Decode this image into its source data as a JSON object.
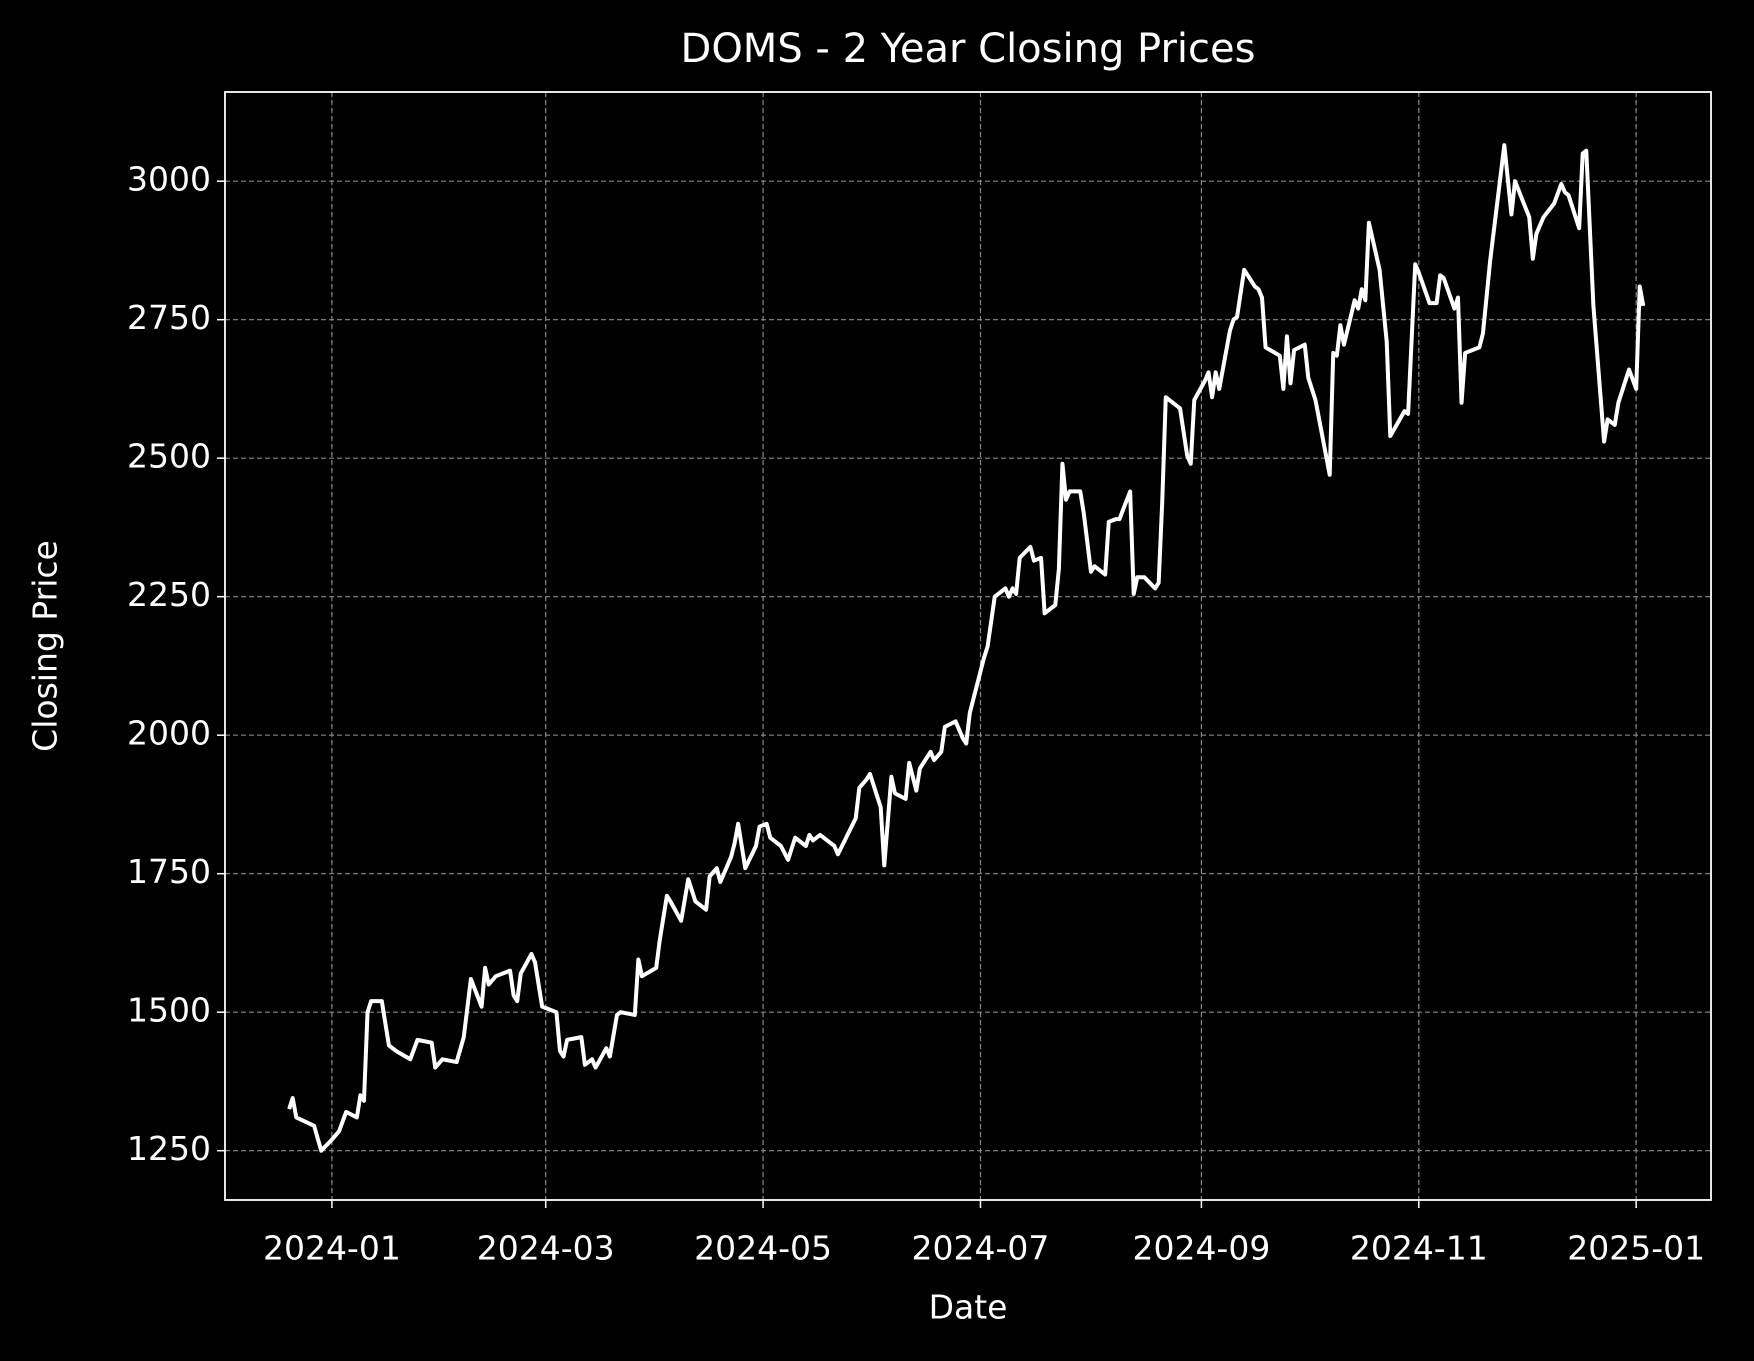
{
  "chart_data": {
    "type": "line",
    "title": "DOMS - 2 Year Closing Prices",
    "xlabel": "Date",
    "ylabel": "Closing Price",
    "x": [
      "2023-12-20",
      "2023-12-21",
      "2023-12-22",
      "2023-12-27",
      "2023-12-29",
      "2024-01-01",
      "2024-01-03",
      "2024-01-05",
      "2024-01-08",
      "2024-01-09",
      "2024-01-10",
      "2024-01-11",
      "2024-01-12",
      "2024-01-15",
      "2024-01-17",
      "2024-01-19",
      "2024-01-23",
      "2024-01-25",
      "2024-01-29",
      "2024-01-30",
      "2024-02-01",
      "2024-02-05",
      "2024-02-07",
      "2024-02-09",
      "2024-02-12",
      "2024-02-13",
      "2024-02-14",
      "2024-02-16",
      "2024-02-20",
      "2024-02-21",
      "2024-02-22",
      "2024-02-23",
      "2024-02-26",
      "2024-02-27",
      "2024-02-29",
      "2024-03-04",
      "2024-03-05",
      "2024-03-06",
      "2024-03-07",
      "2024-03-11",
      "2024-03-12",
      "2024-03-14",
      "2024-03-15",
      "2024-03-18",
      "2024-03-19",
      "2024-03-21",
      "2024-03-22",
      "2024-03-26",
      "2024-03-27",
      "2024-03-28",
      "2024-04-01",
      "2024-04-02",
      "2024-04-04",
      "2024-04-05",
      "2024-04-08",
      "2024-04-10",
      "2024-04-12",
      "2024-04-15",
      "2024-04-16",
      "2024-04-18",
      "2024-04-19",
      "2024-04-22",
      "2024-04-23",
      "2024-04-24",
      "2024-04-26",
      "2024-04-29",
      "2024-04-30",
      "2024-05-02",
      "2024-05-03",
      "2024-05-06",
      "2024-05-08",
      "2024-05-10",
      "2024-05-13",
      "2024-05-14",
      "2024-05-15",
      "2024-05-17",
      "2024-05-21",
      "2024-05-22",
      "2024-05-27",
      "2024-05-28",
      "2024-05-30",
      "2024-05-31",
      "2024-06-03",
      "2024-06-04",
      "2024-06-06",
      "2024-06-07",
      "2024-06-10",
      "2024-06-11",
      "2024-06-13",
      "2024-06-14",
      "2024-06-17",
      "2024-06-18",
      "2024-06-20",
      "2024-06-21",
      "2024-06-24",
      "2024-06-26",
      "2024-06-27",
      "2024-06-28",
      "2024-07-02",
      "2024-07-03",
      "2024-07-05",
      "2024-07-08",
      "2024-07-09",
      "2024-07-10",
      "2024-07-11",
      "2024-07-12",
      "2024-07-15",
      "2024-07-16",
      "2024-07-18",
      "2024-07-19",
      "2024-07-22",
      "2024-07-23",
      "2024-07-24",
      "2024-07-25",
      "2024-07-26",
      "2024-07-29",
      "2024-07-30",
      "2024-08-01",
      "2024-08-02",
      "2024-08-05",
      "2024-08-06",
      "2024-08-08",
      "2024-08-09",
      "2024-08-12",
      "2024-08-13",
      "2024-08-14",
      "2024-08-16",
      "2024-08-19",
      "2024-08-20",
      "2024-08-21",
      "2024-08-22",
      "2024-08-26",
      "2024-08-28",
      "2024-08-29",
      "2024-08-30",
      "2024-09-02",
      "2024-09-03",
      "2024-09-04",
      "2024-09-05",
      "2024-09-06",
      "2024-09-09",
      "2024-09-10",
      "2024-09-11",
      "2024-09-13",
      "2024-09-16",
      "2024-09-17",
      "2024-09-18",
      "2024-09-19",
      "2024-09-23",
      "2024-09-24",
      "2024-09-25",
      "2024-09-26",
      "2024-09-27",
      "2024-09-30",
      "2024-10-01",
      "2024-10-03",
      "2024-10-07",
      "2024-10-08",
      "2024-10-09",
      "2024-10-10",
      "2024-10-11",
      "2024-10-14",
      "2024-10-15",
      "2024-10-16",
      "2024-10-17",
      "2024-10-18",
      "2024-10-21",
      "2024-10-23",
      "2024-10-24",
      "2024-10-28",
      "2024-10-29",
      "2024-10-31",
      "2024-11-01",
      "2024-11-04",
      "2024-11-06",
      "2024-11-07",
      "2024-11-08",
      "2024-11-11",
      "2024-11-12",
      "2024-11-13",
      "2024-11-14",
      "2024-11-18",
      "2024-11-19",
      "2024-11-21",
      "2024-11-25",
      "2024-11-27",
      "2024-11-28",
      "2024-12-02",
      "2024-12-03",
      "2024-12-04",
      "2024-12-06",
      "2024-12-09",
      "2024-12-11",
      "2024-12-12",
      "2024-12-13",
      "2024-12-16",
      "2024-12-17",
      "2024-12-18",
      "2024-12-20",
      "2024-12-23",
      "2024-12-24",
      "2024-12-26",
      "2024-12-27",
      "2024-12-30",
      "2025-01-01",
      "2025-01-02",
      "2025-01-03"
    ],
    "series": [
      {
        "color": "#ffffff",
        "values": [
          1325,
          1345,
          1310,
          1295,
          1250,
          1270,
          1285,
          1320,
          1310,
          1350,
          1340,
          1500,
          1520,
          1520,
          1440,
          1430,
          1415,
          1450,
          1445,
          1400,
          1415,
          1410,
          1455,
          1560,
          1510,
          1580,
          1550,
          1565,
          1575,
          1530,
          1520,
          1570,
          1605,
          1590,
          1510,
          1500,
          1430,
          1420,
          1450,
          1455,
          1405,
          1415,
          1400,
          1435,
          1420,
          1495,
          1500,
          1495,
          1595,
          1565,
          1580,
          1630,
          1710,
          1700,
          1665,
          1740,
          1700,
          1685,
          1745,
          1760,
          1735,
          1780,
          1805,
          1840,
          1760,
          1800,
          1835,
          1840,
          1815,
          1800,
          1775,
          1815,
          1800,
          1820,
          1810,
          1820,
          1800,
          1785,
          1850,
          1905,
          1920,
          1930,
          1870,
          1765,
          1925,
          1895,
          1885,
          1950,
          1900,
          1940,
          1970,
          1955,
          1970,
          2015,
          2025,
          1995,
          1985,
          2040,
          2140,
          2160,
          2250,
          2265,
          2250,
          2265,
          2255,
          2320,
          2340,
          2315,
          2320,
          2220,
          2235,
          2300,
          2490,
          2425,
          2440,
          2440,
          2400,
          2295,
          2305,
          2290,
          2385,
          2390,
          2390,
          2440,
          2255,
          2285,
          2285,
          2265,
          2275,
          2420,
          2610,
          2590,
          2505,
          2490,
          2605,
          2640,
          2655,
          2610,
          2655,
          2625,
          2730,
          2750,
          2755,
          2840,
          2810,
          2805,
          2790,
          2700,
          2685,
          2625,
          2720,
          2635,
          2695,
          2705,
          2645,
          2605,
          2470,
          2690,
          2685,
          2740,
          2705,
          2785,
          2770,
          2805,
          2785,
          2925,
          2840,
          2710,
          2540,
          2585,
          2580,
          2850,
          2835,
          2780,
          2780,
          2830,
          2825,
          2770,
          2790,
          2600,
          2690,
          2700,
          2725,
          2855,
          3065,
          2940,
          3000,
          2935,
          2860,
          2905,
          2935,
          2960,
          2995,
          2980,
          2975,
          2915,
          3050,
          3055,
          2775,
          2530,
          2570,
          2560,
          2600,
          2660,
          2625,
          2810,
          2775
        ]
      }
    ],
    "xlim": [
      "2023-12-02",
      "2025-01-22"
    ],
    "xticks": [
      "2024-01",
      "2024-03",
      "2024-05",
      "2024-07",
      "2024-09",
      "2024-11",
      "2025-01"
    ],
    "ylim": [
      1161,
      3161
    ],
    "yticks": [
      1250,
      1500,
      1750,
      2000,
      2250,
      2500,
      2750,
      3000
    ],
    "grid": true
  }
}
